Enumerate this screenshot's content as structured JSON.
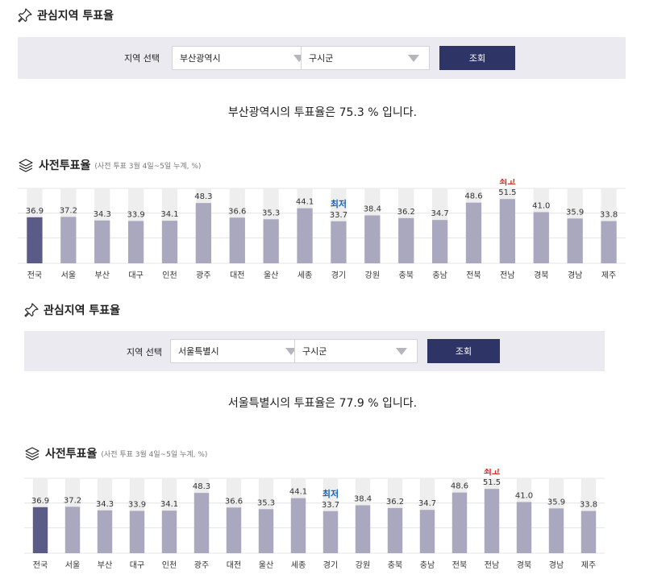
{
  "panels": [
    {
      "interest_title": "관심지역 투표율",
      "search": {
        "label": "지역 선택",
        "region": "부산광역시",
        "district": "구시군",
        "button": "조회"
      },
      "summary": "부산광역시의 투표율은 75.3 % 입니다.",
      "early_title": "사전투표율",
      "early_sub": "(사전 투표 3월 4일~5일 누계, %)"
    },
    {
      "interest_title": "관심지역 투표율",
      "search": {
        "label": "지역 선택",
        "region": "서울특별시",
        "district": "구시군",
        "button": "조회"
      },
      "summary": "서울특별시의 투표율은 77.9 % 입니다.",
      "early_title": "사전투표율",
      "early_sub": "(사전 투표 3월 4일~5일 누계, %)"
    }
  ],
  "chart_data": {
    "type": "bar",
    "categories": [
      "전국",
      "서울",
      "부산",
      "대구",
      "인천",
      "광주",
      "대전",
      "울산",
      "세종",
      "경기",
      "강원",
      "충북",
      "충남",
      "전북",
      "전남",
      "경북",
      "경남",
      "제주"
    ],
    "values": [
      36.9,
      37.2,
      34.3,
      33.9,
      34.1,
      48.3,
      36.6,
      35.3,
      44.1,
      33.7,
      38.4,
      36.2,
      34.7,
      48.6,
      51.5,
      41.0,
      35.9,
      33.8
    ],
    "value_labels": [
      "36.9",
      "37.2",
      "34.3",
      "33.9",
      "34.1",
      "48.3",
      "36.6",
      "35.3",
      "44.1",
      "33.7",
      "38.4",
      "36.2",
      "34.7",
      "48.6",
      "51.5",
      "41.0",
      "35.9",
      "33.8"
    ],
    "highlight_index": 0,
    "min_label": "최저",
    "min_index": 9,
    "max_label": "최고",
    "max_index": 14,
    "ylim": [
      0,
      60
    ],
    "grid": true,
    "colors": {
      "highlight": "#5a5c87",
      "bar": "#a9a8bf",
      "track": "#eeeeee",
      "min": "#1565c0",
      "max": "#d32f2f"
    }
  }
}
